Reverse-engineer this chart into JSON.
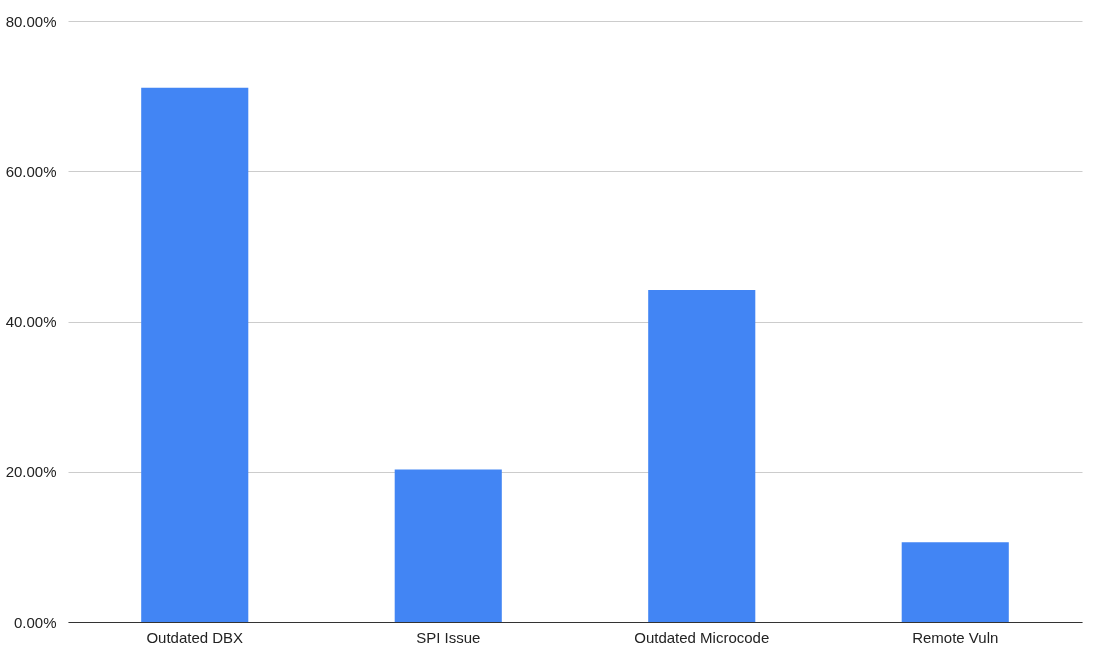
{
  "chart_data": {
    "type": "bar",
    "categories": [
      "Outdated DBX",
      "SPI Issue",
      "Outdated Microcode",
      "Remote Vuln"
    ],
    "values": [
      71.1,
      20.3,
      44.2,
      10.6
    ],
    "color": "#4285f4",
    "ylim": [
      0,
      80
    ],
    "yticks": [
      {
        "value": 0,
        "label": "0.00%"
      },
      {
        "value": 20,
        "label": "20.00%"
      },
      {
        "value": 40,
        "label": "40.00%"
      },
      {
        "value": 60,
        "label": "60.00%"
      },
      {
        "value": 80,
        "label": "80.00%"
      }
    ],
    "grid": "y"
  }
}
